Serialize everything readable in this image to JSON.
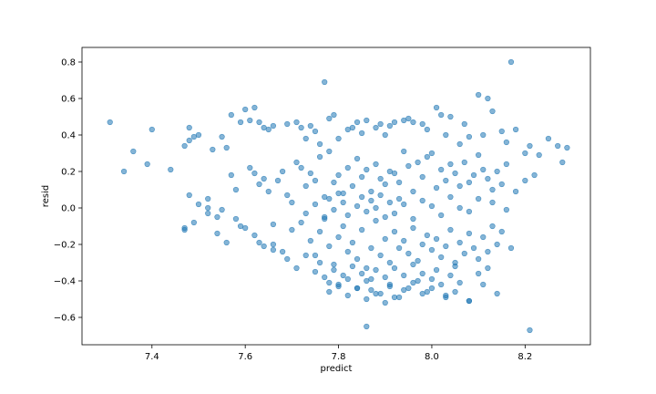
{
  "chart_data": {
    "type": "scatter",
    "title": "",
    "xlabel": "predict",
    "ylabel": "resid",
    "xlim": [
      7.25,
      8.34
    ],
    "ylim": [
      -0.75,
      0.88
    ],
    "xticks": [
      7.4,
      7.6,
      7.8,
      8.0,
      8.2
    ],
    "yticks": [
      -0.6,
      -0.4,
      -0.2,
      0.0,
      0.2,
      0.4,
      0.6,
      0.8
    ],
    "xtick_labels": [
      "7.4",
      "7.6",
      "7.8",
      "8.0",
      "8.2"
    ],
    "ytick_labels": [
      "−0.6",
      "−0.4",
      "−0.2",
      "0.0",
      "0.2",
      "0.4",
      "0.6",
      "0.8"
    ],
    "grid": false,
    "legend": "none",
    "point_color": "#1f77b4",
    "point_alpha": 0.55,
    "series": [
      {
        "x": [
          7.31,
          7.34,
          7.36,
          7.39,
          7.4,
          7.44,
          7.47,
          7.48,
          7.48,
          7.49,
          7.5,
          7.52,
          7.53,
          7.55,
          7.56,
          7.57,
          7.59,
          7.6,
          7.61,
          7.62,
          7.63,
          7.64,
          7.65,
          7.66,
          7.69,
          7.71,
          7.72,
          7.73,
          7.74,
          7.75,
          7.76,
          7.77,
          7.78,
          7.79,
          7.8,
          7.82,
          7.83,
          7.84,
          7.85,
          7.86,
          7.88,
          7.89,
          7.9,
          7.91,
          7.92,
          7.94,
          7.95,
          7.96,
          7.98,
          7.99,
          8.01,
          8.02,
          8.03,
          8.04,
          8.06,
          8.07,
          8.08,
          8.1,
          8.11,
          8.12,
          8.13,
          8.15,
          8.16,
          8.17,
          8.18,
          8.2,
          8.21,
          8.23,
          8.25,
          8.27,
          8.28,
          8.29,
          7.47,
          7.48,
          7.5,
          7.52,
          7.54,
          7.55,
          7.57,
          7.58,
          7.59,
          7.61,
          7.62,
          7.63,
          7.64,
          7.65,
          7.66,
          7.67,
          7.68,
          7.69,
          7.7,
          7.71,
          7.72,
          7.73,
          7.74,
          7.75,
          7.76,
          7.77,
          7.78,
          7.79,
          7.8,
          7.81,
          7.82,
          7.83,
          7.84,
          7.85,
          7.86,
          7.87,
          7.88,
          7.89,
          7.9,
          7.91,
          7.92,
          7.93,
          7.94,
          7.95,
          7.96,
          7.97,
          7.98,
          7.99,
          8.0,
          8.01,
          8.02,
          8.03,
          8.04,
          8.05,
          8.06,
          8.07,
          8.08,
          8.09,
          8.1,
          8.11,
          8.12,
          8.13,
          8.14,
          8.15,
          8.16,
          8.18,
          8.2,
          8.22,
          7.47,
          7.49,
          7.52,
          7.54,
          7.56,
          7.58,
          7.6,
          7.62,
          7.64,
          7.66,
          7.68,
          7.7,
          7.72,
          7.74,
          7.75,
          7.76,
          7.77,
          7.78,
          7.79,
          7.8,
          7.81,
          7.82,
          7.83,
          7.84,
          7.85,
          7.86,
          7.87,
          7.88,
          7.89,
          7.9,
          7.91,
          7.92,
          7.93,
          7.94,
          7.95,
          7.96,
          7.97,
          7.98,
          7.99,
          8.0,
          8.01,
          8.02,
          8.03,
          8.04,
          8.05,
          8.06,
          8.07,
          8.08,
          8.09,
          8.1,
          8.11,
          8.12,
          8.13,
          8.14,
          8.15,
          7.63,
          7.66,
          7.69,
          7.71,
          7.73,
          7.75,
          7.76,
          7.77,
          7.78,
          7.79,
          7.8,
          7.81,
          7.82,
          7.83,
          7.84,
          7.85,
          7.86,
          7.87,
          7.88,
          7.89,
          7.9,
          7.91,
          7.92,
          7.93,
          7.94,
          7.95,
          7.96,
          7.97,
          7.98,
          7.99,
          8.0,
          8.01,
          8.02,
          8.03,
          8.04,
          8.05,
          8.06,
          8.08,
          8.1,
          8.12,
          7.73,
          7.75,
          7.77,
          7.78,
          7.79,
          7.8,
          7.81,
          7.82,
          7.84,
          7.85,
          7.86,
          7.87,
          7.88,
          7.89,
          7.9,
          7.91,
          7.92,
          7.93,
          7.94,
          7.96,
          7.98,
          8.0,
          8.02,
          8.04,
          8.06,
          8.08,
          8.1,
          8.13,
          8.16,
          7.78,
          7.8,
          7.82,
          7.84,
          7.86,
          7.87,
          7.88,
          7.9,
          7.91,
          7.92,
          7.94,
          7.96,
          7.98,
          8.0,
          8.03,
          8.05,
          8.08,
          8.11,
          8.14,
          8.17,
          7.86,
          8.21
        ],
        "y": [
          0.47,
          0.2,
          0.31,
          0.24,
          0.43,
          0.21,
          0.34,
          0.44,
          0.37,
          0.39,
          0.4,
          0.05,
          0.32,
          0.39,
          0.33,
          0.51,
          0.47,
          0.54,
          0.48,
          0.55,
          0.47,
          0.44,
          0.43,
          0.45,
          0.46,
          0.47,
          0.44,
          0.38,
          0.45,
          0.42,
          0.35,
          0.69,
          0.49,
          0.51,
          0.38,
          0.43,
          0.44,
          0.47,
          0.41,
          0.48,
          0.44,
          0.46,
          0.4,
          0.45,
          0.47,
          0.48,
          0.49,
          0.47,
          0.46,
          0.43,
          0.55,
          0.51,
          0.4,
          0.5,
          0.35,
          0.46,
          0.39,
          0.62,
          0.4,
          0.6,
          0.53,
          0.42,
          0.36,
          0.8,
          0.43,
          0.3,
          0.34,
          0.29,
          0.38,
          0.34,
          0.25,
          0.33,
          -0.11,
          0.07,
          0.02,
          0.0,
          -0.05,
          -0.01,
          0.18,
          0.1,
          -0.1,
          0.22,
          0.19,
          0.13,
          0.16,
          0.09,
          -0.2,
          0.15,
          0.2,
          0.07,
          0.03,
          0.25,
          0.22,
          0.12,
          0.19,
          0.15,
          0.28,
          0.06,
          0.31,
          0.14,
          0.18,
          0.08,
          0.22,
          0.12,
          0.27,
          0.17,
          0.21,
          0.09,
          0.24,
          0.16,
          0.13,
          0.2,
          0.19,
          0.14,
          0.31,
          0.23,
          0.09,
          0.25,
          0.17,
          0.28,
          0.3,
          0.11,
          0.21,
          0.15,
          0.24,
          0.19,
          0.12,
          0.25,
          0.14,
          0.18,
          0.29,
          0.21,
          0.16,
          0.1,
          0.2,
          0.13,
          0.24,
          0.09,
          0.15,
          0.18,
          -0.12,
          -0.08,
          -0.03,
          -0.14,
          -0.19,
          -0.06,
          -0.11,
          -0.15,
          -0.21,
          -0.09,
          -0.24,
          -0.12,
          -0.08,
          -0.18,
          -0.26,
          -0.13,
          -0.05,
          -0.21,
          -0.31,
          -0.16,
          -0.1,
          -0.24,
          -0.19,
          -0.28,
          -0.12,
          -0.33,
          -0.22,
          -0.07,
          -0.26,
          -0.17,
          -0.3,
          -0.13,
          -0.22,
          -0.18,
          -0.25,
          -0.11,
          -0.29,
          -0.2,
          -0.15,
          -0.23,
          -0.17,
          -0.27,
          -0.21,
          -0.12,
          -0.3,
          -0.19,
          -0.25,
          -0.14,
          -0.22,
          -0.28,
          -0.16,
          -0.24,
          -0.1,
          -0.2,
          -0.13,
          -0.19,
          -0.23,
          -0.28,
          -0.33,
          -0.26,
          -0.35,
          -0.3,
          -0.38,
          -0.41,
          -0.34,
          -0.43,
          -0.37,
          -0.39,
          -0.32,
          -0.44,
          -0.36,
          -0.4,
          -0.45,
          -0.34,
          -0.47,
          -0.38,
          -0.42,
          -0.33,
          -0.49,
          -0.37,
          -0.44,
          -0.31,
          -0.4,
          -0.36,
          -0.46,
          -0.39,
          -0.34,
          -0.42,
          -0.48,
          -0.37,
          -0.32,
          -0.41,
          -0.51,
          -0.36,
          -0.33,
          -0.03,
          0.02,
          -0.06,
          0.05,
          -0.01,
          0.08,
          0.03,
          -0.04,
          0.01,
          0.06,
          -0.02,
          0.04,
          0.0,
          0.07,
          -0.05,
          0.03,
          -0.03,
          0.05,
          0.02,
          -0.06,
          0.04,
          0.01,
          -0.04,
          0.06,
          0.0,
          -0.02,
          0.05,
          0.03,
          -0.01,
          -0.46,
          -0.42,
          -0.48,
          -0.44,
          -0.5,
          -0.39,
          -0.47,
          -0.52,
          -0.43,
          -0.49,
          -0.45,
          -0.41,
          -0.47,
          -0.44,
          -0.49,
          -0.46,
          -0.51,
          -0.42,
          -0.47,
          -0.22,
          -0.65,
          -0.67
        ]
      }
    ]
  }
}
